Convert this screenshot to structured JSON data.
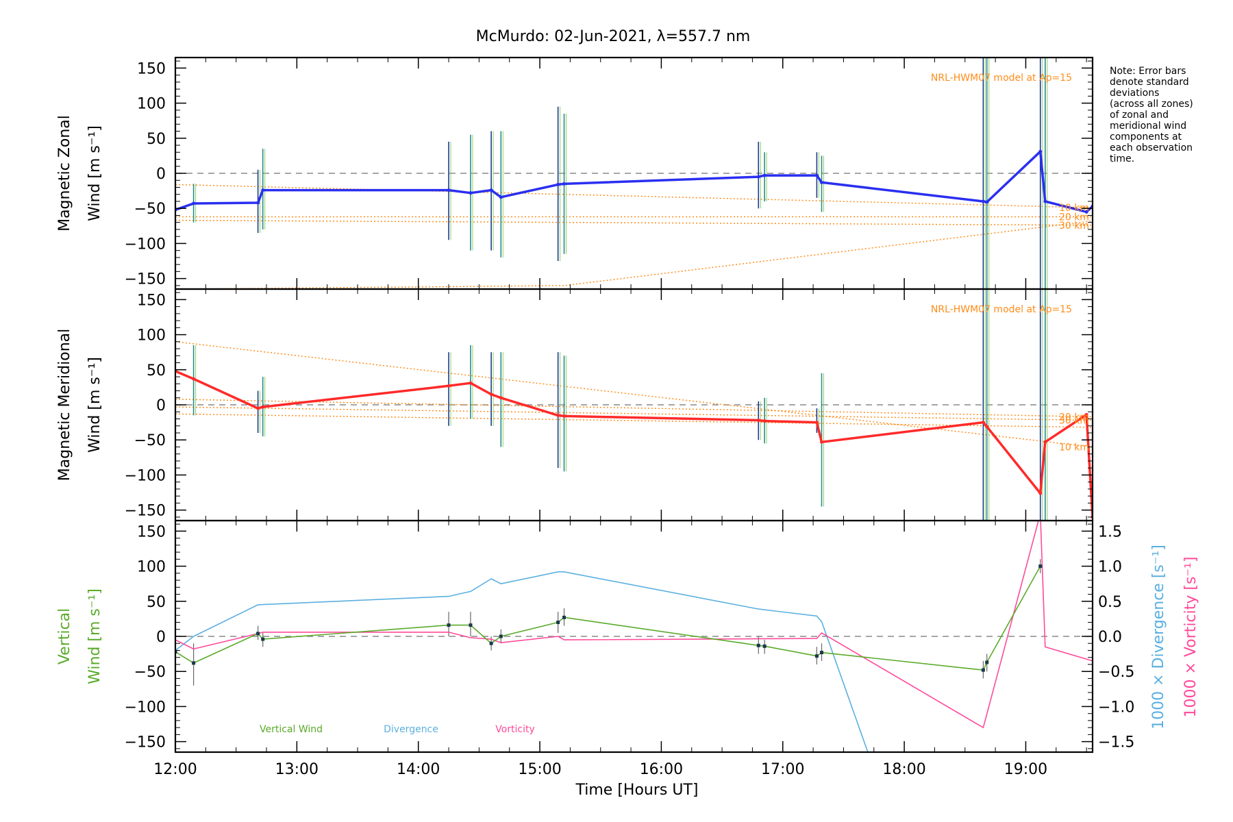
{
  "chart_data": {
    "type": "line",
    "title": "McMurdo: 02-Jun-2021, λ=557.7 nm",
    "xlabel": "Time [Hours UT]",
    "xlim": [
      12.0,
      19.55
    ],
    "x_ticks": [
      12,
      13,
      14,
      15,
      16,
      17,
      18,
      19
    ],
    "x_tick_labels": [
      "12:00",
      "13:00",
      "14:00",
      "15:00",
      "16:00",
      "17:00",
      "18:00",
      "19:00"
    ],
    "note": "Note: Error bars\ndenote standard\ndeviations\n(across all zones)\nof zonal and\nmeridional wind\ncomponents at\neach observation\ntime.",
    "colors": {
      "zonal": "#2a2ff0",
      "meridional": "#ff2a2a",
      "vertical": "#5aaa2a",
      "divergence": "#5ab0e0",
      "vorticity": "#ff4a9a",
      "model": "#ff8c1a",
      "zero": "#888888"
    },
    "panels": [
      {
        "id": "zonal",
        "ylabel_line1": "Magnetic Zonal",
        "ylabel_line2": "Wind [m s⁻¹]",
        "ylim": [
          -165,
          165
        ],
        "y_ticks": [
          150,
          100,
          50,
          0,
          -50,
          -100,
          -150
        ],
        "y_tick_labels": [
          "150",
          "100",
          "50",
          "0",
          "−50",
          "−100",
          "−150"
        ],
        "model_label": "NRL-HWM07 model at Ap=15",
        "model_alt_labels": [
          "10 km",
          "20 km",
          "30 km"
        ],
        "series": [
          {
            "name": "Zonal wind",
            "x": [
              12.0,
              12.15,
              12.68,
              12.72,
              14.25,
              14.43,
              14.6,
              14.68,
              15.15,
              15.2,
              16.8,
              16.85,
              17.28,
              17.32,
              18.65,
              18.68,
              19.12,
              19.16,
              19.5,
              19.55
            ],
            "y": [
              -52,
              -43,
              -42,
              -24,
              -24,
              -28,
              -24,
              -34,
              -16,
              -15,
              -5,
              -3,
              -3,
              -13,
              -40,
              -41,
              31,
              -40,
              -55,
              -47
            ]
          }
        ],
        "error_bars": [
          {
            "x": 12.15,
            "low": -70,
            "high": -15
          },
          {
            "x": 12.68,
            "low": -85,
            "high": 5
          },
          {
            "x": 12.72,
            "low": -80,
            "high": 35
          },
          {
            "x": 14.25,
            "low": -95,
            "high": 45
          },
          {
            "x": 14.43,
            "low": -110,
            "high": 55
          },
          {
            "x": 14.6,
            "low": -110,
            "high": 60
          },
          {
            "x": 14.68,
            "low": -120,
            "high": 60
          },
          {
            "x": 15.15,
            "low": -125,
            "high": 95
          },
          {
            "x": 15.2,
            "low": -115,
            "high": 85
          },
          {
            "x": 16.8,
            "low": -50,
            "high": 45
          },
          {
            "x": 16.85,
            "low": -40,
            "high": 30
          },
          {
            "x": 17.28,
            "low": -35,
            "high": 30
          },
          {
            "x": 17.32,
            "low": -55,
            "high": 25
          },
          {
            "x": 18.65,
            "low": -165,
            "high": 165
          },
          {
            "x": 18.68,
            "low": -165,
            "high": 165
          },
          {
            "x": 19.12,
            "low": -165,
            "high": 165
          },
          {
            "x": 19.16,
            "low": -165,
            "high": 165
          }
        ],
        "model_lines": [
          {
            "x": [
              12.0,
              19.55
            ],
            "y": [
              -16,
              -49
            ]
          },
          {
            "x": [
              12.0,
              19.55
            ],
            "y": [
              -62,
              -62
            ]
          },
          {
            "x": [
              12.0,
              19.55
            ],
            "y": [
              -67,
              -74
            ]
          },
          {
            "x": [
              12.0,
              15.2,
              19.55
            ],
            "y": [
              -165,
              -160,
              -68
            ]
          }
        ]
      },
      {
        "id": "meridional",
        "ylabel_line1": "Magnetic Meridional",
        "ylabel_line2": "Wind [m s⁻¹]",
        "ylim": [
          -165,
          165
        ],
        "y_ticks": [
          150,
          100,
          50,
          0,
          -50,
          -100,
          -150
        ],
        "y_tick_labels": [
          "150",
          "100",
          "50",
          "0",
          "−50",
          "−100",
          "−150"
        ],
        "model_label": "NRL-HWM07 model at Ap=15",
        "model_alt_labels": [
          "10 km",
          "20 km",
          "30 km"
        ],
        "series": [
          {
            "name": "Meridional wind",
            "x": [
              12.0,
              12.15,
              12.68,
              12.72,
              14.25,
              14.43,
              14.6,
              14.68,
              15.15,
              15.2,
              16.8,
              16.85,
              17.28,
              17.32,
              18.65,
              18.68,
              19.12,
              19.16,
              19.5,
              19.55
            ],
            "y": [
              48,
              37,
              -5,
              -3,
              27,
              31,
              15,
              10,
              -15,
              -16,
              -22,
              -23,
              -25,
              -53,
              -25,
              -31,
              -126,
              -53,
              -14,
              -160
            ]
          }
        ],
        "error_bars": [
          {
            "x": 12.15,
            "low": -15,
            "high": 85
          },
          {
            "x": 12.68,
            "low": -40,
            "high": 20
          },
          {
            "x": 12.72,
            "low": -45,
            "high": 40
          },
          {
            "x": 14.25,
            "low": -30,
            "high": 75
          },
          {
            "x": 14.43,
            "low": -20,
            "high": 85
          },
          {
            "x": 14.6,
            "low": -30,
            "high": 75
          },
          {
            "x": 14.68,
            "low": -60,
            "high": 75
          },
          {
            "x": 15.15,
            "low": -90,
            "high": 75
          },
          {
            "x": 15.2,
            "low": -95,
            "high": 70
          },
          {
            "x": 16.8,
            "low": -50,
            "high": 5
          },
          {
            "x": 16.85,
            "low": -55,
            "high": 10
          },
          {
            "x": 17.28,
            "low": -40,
            "high": -5
          },
          {
            "x": 17.32,
            "low": -145,
            "high": 45
          },
          {
            "x": 18.65,
            "low": -165,
            "high": 165
          },
          {
            "x": 18.68,
            "low": -165,
            "high": 165
          },
          {
            "x": 19.12,
            "low": -165,
            "high": 165
          },
          {
            "x": 19.16,
            "low": -165,
            "high": 165
          }
        ],
        "model_lines": [
          {
            "x": [
              12.0,
              19.55
            ],
            "y": [
              90,
              -60
            ]
          },
          {
            "x": [
              12.0,
              19.55
            ],
            "y": [
              8,
              -17
            ]
          },
          {
            "x": [
              12.0,
              19.55
            ],
            "y": [
              -3,
              -22
            ]
          },
          {
            "x": [
              12.0,
              19.55
            ],
            "y": [
              -13,
              -32
            ]
          }
        ]
      },
      {
        "id": "vertical",
        "ylabel_line1": "Vertical",
        "ylabel_line2": "Wind [m s⁻¹]",
        "ylim": [
          -165,
          165
        ],
        "y_ticks": [
          150,
          100,
          50,
          0,
          -50,
          -100,
          -150
        ],
        "y_tick_labels": [
          "150",
          "100",
          "50",
          "0",
          "−50",
          "−100",
          "−150"
        ],
        "right_ylim": [
          -1.65,
          1.65
        ],
        "right_y_ticks": [
          1.5,
          1.0,
          0.5,
          0.0,
          -0.5,
          -1.0,
          -1.5
        ],
        "right_y_tick_labels": [
          "1.5",
          "1.0",
          "0.5",
          "0.0",
          "−0.5",
          "−1.0",
          "−1.5"
        ],
        "right_ylabel_div": "1000 × Divergence [s⁻¹]",
        "right_ylabel_vort": "1000 × Vorticity [s⁻¹]",
        "legend": [
          "Vertical Wind",
          "Divergence",
          "Vorticity"
        ],
        "vertical_wind": {
          "x": [
            12.0,
            12.15,
            12.68,
            12.72,
            14.25,
            14.43,
            14.6,
            14.68,
            15.15,
            15.2,
            16.8,
            16.85,
            17.28,
            17.32,
            18.65,
            18.68,
            19.12
          ],
          "y": [
            -22,
            -38,
            4,
            -4,
            16,
            16,
            -10,
            0,
            20,
            27,
            -13,
            -14,
            -28,
            -23,
            -48,
            -37,
            100
          ]
        },
        "vertical_error_bars": [
          {
            "x": 12.15,
            "low": -70,
            "high": -10
          },
          {
            "x": 12.68,
            "low": -5,
            "high": 15
          },
          {
            "x": 12.72,
            "low": -15,
            "high": 5
          },
          {
            "x": 14.25,
            "low": 0,
            "high": 35
          },
          {
            "x": 14.43,
            "low": 0,
            "high": 35
          },
          {
            "x": 14.6,
            "low": -20,
            "high": 0
          },
          {
            "x": 14.68,
            "low": -10,
            "high": 10
          },
          {
            "x": 15.15,
            "low": 5,
            "high": 35
          },
          {
            "x": 15.2,
            "low": 15,
            "high": 40
          },
          {
            "x": 16.8,
            "low": -25,
            "high": 0
          },
          {
            "x": 16.85,
            "low": -25,
            "high": -5
          },
          {
            "x": 17.28,
            "low": -40,
            "high": -15
          },
          {
            "x": 17.32,
            "low": -35,
            "high": -10
          },
          {
            "x": 18.65,
            "low": -60,
            "high": -35
          },
          {
            "x": 18.68,
            "low": -50,
            "high": -25
          },
          {
            "x": 19.12,
            "low": 90,
            "high": 110
          }
        ],
        "divergence": {
          "x": [
            12.0,
            12.15,
            12.68,
            14.25,
            14.43,
            14.6,
            14.68,
            15.15,
            15.2,
            16.8,
            17.28,
            17.32,
            17.7
          ],
          "y": [
            -0.2,
            0.0,
            0.45,
            0.57,
            0.64,
            0.82,
            0.75,
            0.92,
            0.92,
            0.39,
            0.29,
            0.21,
            -1.65
          ]
        },
        "vorticity": {
          "x": [
            12.0,
            12.15,
            12.68,
            12.72,
            14.25,
            14.43,
            14.6,
            14.68,
            15.15,
            15.2,
            17.28,
            17.32,
            18.65,
            19.12,
            19.16,
            19.55
          ],
          "y": [
            -0.05,
            -0.18,
            0.04,
            0.06,
            0.06,
            -0.02,
            -0.04,
            -0.09,
            0.0,
            -0.05,
            -0.03,
            0.05,
            -1.3,
            1.75,
            -0.15,
            -0.35
          ]
        }
      }
    ]
  }
}
